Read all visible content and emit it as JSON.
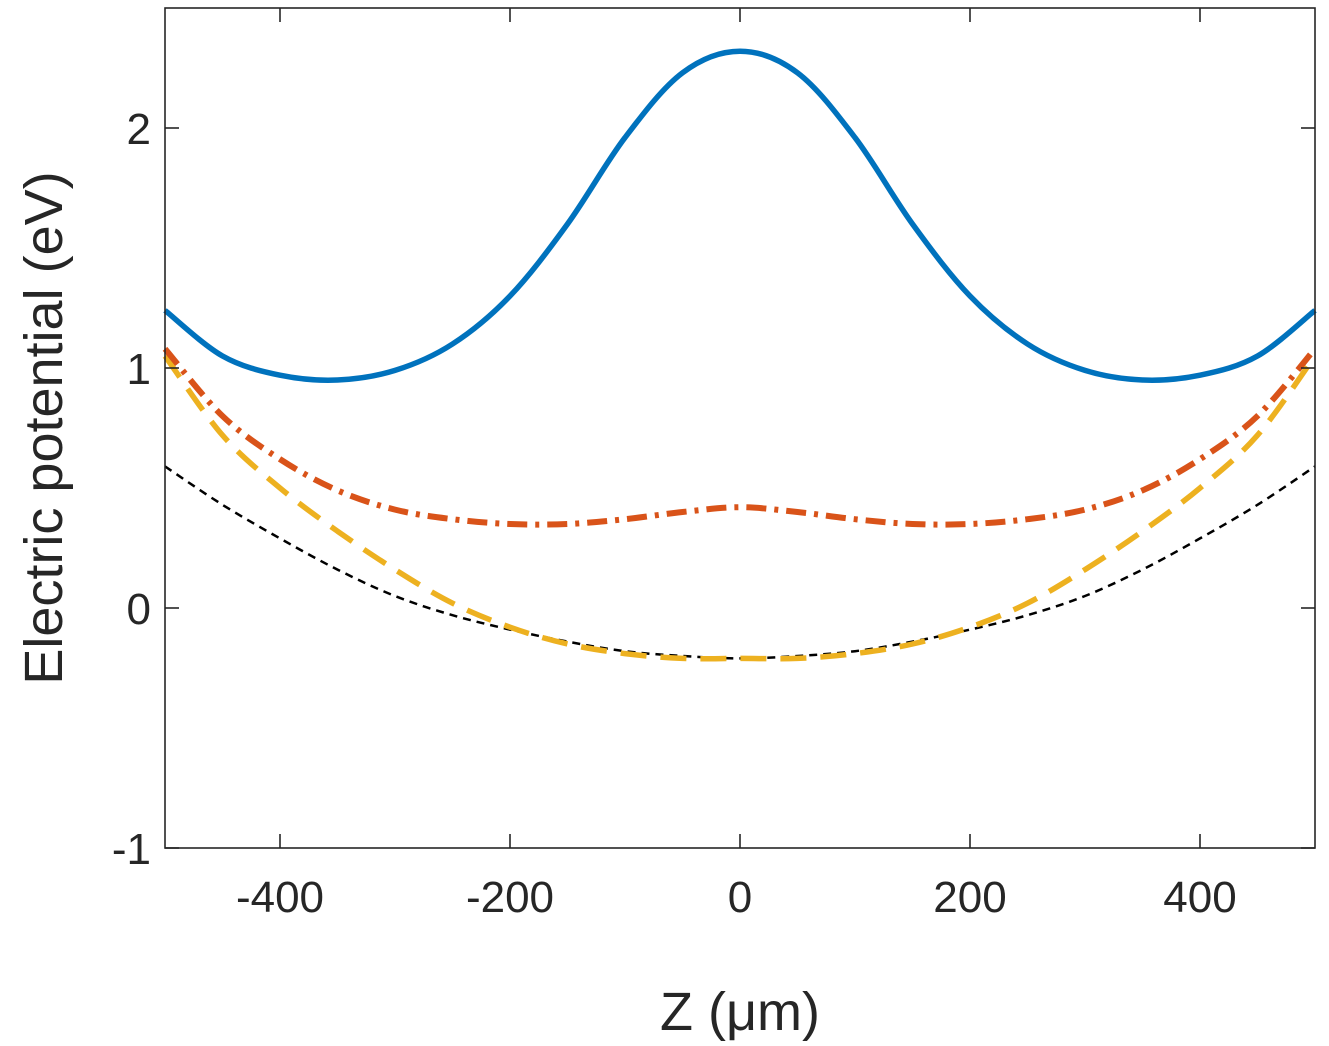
{
  "chart_data": {
    "type": "line",
    "title": "",
    "xlabel": "Z (μm)",
    "ylabel": "Electric potential (eV)",
    "xlim": [
      -500,
      500
    ],
    "ylim": [
      -1,
      2.5
    ],
    "xticks": [
      -400,
      -200,
      0,
      200,
      400
    ],
    "xtick_labels": [
      "-400",
      "-200",
      "0",
      "200",
      "400"
    ],
    "yticks": [
      -1,
      0,
      1,
      2
    ],
    "ytick_labels": [
      "-1",
      "0",
      "1",
      "2"
    ],
    "grid": false,
    "box": true,
    "x": [
      -500,
      -450,
      -400,
      -350,
      -300,
      -250,
      -200,
      -150,
      -100,
      -50,
      0,
      50,
      100,
      150,
      200,
      250,
      300,
      350,
      400,
      450,
      500
    ],
    "series": [
      {
        "name": "solid",
        "style": "solid",
        "color": "#0072BD",
        "values": [
          1.24,
          1.05,
          0.97,
          0.95,
          0.99,
          1.1,
          1.3,
          1.6,
          1.96,
          2.23,
          2.32,
          2.23,
          1.96,
          1.6,
          1.3,
          1.1,
          0.99,
          0.95,
          0.97,
          1.05,
          1.24
        ]
      },
      {
        "name": "dash-dot",
        "style": "dashdot",
        "color": "#D95319",
        "values": [
          1.08,
          0.8,
          0.62,
          0.49,
          0.41,
          0.37,
          0.35,
          0.35,
          0.37,
          0.4,
          0.42,
          0.4,
          0.37,
          0.35,
          0.35,
          0.37,
          0.41,
          0.49,
          0.62,
          0.8,
          1.08
        ]
      },
      {
        "name": "dashed",
        "style": "dashed",
        "color": "#EDB120",
        "values": [
          1.05,
          0.72,
          0.5,
          0.32,
          0.16,
          0.02,
          -0.08,
          -0.15,
          -0.19,
          -0.21,
          -0.21,
          -0.21,
          -0.19,
          -0.15,
          -0.08,
          0.02,
          0.16,
          0.32,
          0.5,
          0.72,
          1.05
        ]
      },
      {
        "name": "dotted",
        "style": "dotted",
        "color": "#000000",
        "values": [
          0.59,
          0.43,
          0.29,
          0.16,
          0.05,
          -0.03,
          -0.09,
          -0.14,
          -0.18,
          -0.2,
          -0.21,
          -0.2,
          -0.18,
          -0.14,
          -0.09,
          -0.03,
          0.05,
          0.16,
          0.29,
          0.43,
          0.59
        ]
      }
    ]
  }
}
